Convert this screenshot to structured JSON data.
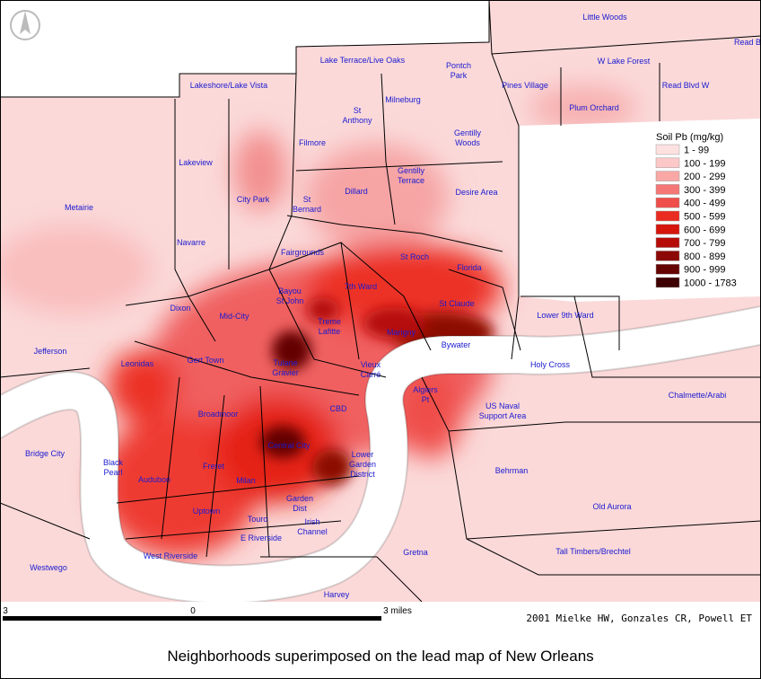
{
  "neighborhoods": [
    [
      "Little Woods"
    ],
    [
      "Read B"
    ],
    [
      "Lake Terrace/Live Oaks"
    ],
    [
      "Pontch",
      "Park"
    ],
    [
      "Pines Village"
    ],
    [
      "W Lake Forest"
    ],
    [
      "Read Blvd W"
    ],
    [
      "Lakeshore/Lake Vista"
    ],
    [
      "Milneburg"
    ],
    [
      "St",
      "Anthony"
    ],
    [
      "Plum Orchard"
    ],
    [
      "Filmore"
    ],
    [
      "Gentilly",
      "Woods"
    ],
    [
      "Lakeview"
    ],
    [
      "Gentilly",
      "Terrace"
    ],
    [
      "Dillard"
    ],
    [
      "Desire Area"
    ],
    [
      "City Park"
    ],
    [
      "St",
      "Bernard"
    ],
    [
      "Metairie"
    ],
    [
      "Navarre"
    ],
    [
      "Fairgrounds"
    ],
    [
      "St Roch"
    ],
    [
      "Florida"
    ],
    [
      "Bayou",
      "St John"
    ],
    [
      "7th Ward"
    ],
    [
      "St Claude"
    ],
    [
      "Dixon"
    ],
    [
      "Mid-City"
    ],
    [
      "Treme",
      "Lafitte"
    ],
    [
      "Lower 9th Ward"
    ],
    [
      "Marigny"
    ],
    [
      "Bywater"
    ],
    [
      "Jefferson"
    ],
    [
      "Leonidas"
    ],
    [
      "Gert Town"
    ],
    [
      "Tulane",
      "Gravier"
    ],
    [
      "Vieux",
      "Carré"
    ],
    [
      "Holy Cross"
    ],
    [
      "Algiers",
      "Pt"
    ],
    [
      "Chalmette/Arabi"
    ],
    [
      "Broadmoor"
    ],
    [
      "CBD"
    ],
    [
      "US Naval",
      "Support Area"
    ],
    [
      "Central City"
    ],
    [
      "Lower",
      "Garden",
      "District"
    ],
    [
      "Bridge City"
    ],
    [
      "Black",
      "Pearl"
    ],
    [
      "Audubon"
    ],
    [
      "Freret"
    ],
    [
      "Milan"
    ],
    [
      "Behrman"
    ],
    [
      "Garden",
      "Dist"
    ],
    [
      "Uptown"
    ],
    [
      "Irish",
      "Channel"
    ],
    [
      "Old Aurora"
    ],
    [
      "Touro"
    ],
    [
      "E Riverside"
    ],
    [
      "West Riverside"
    ],
    [
      "Westwego"
    ],
    [
      "Gretna"
    ],
    [
      "Tall Timbers/Brechtel"
    ],
    [
      "Harvey"
    ]
  ],
  "legend": {
    "title": "Soil Pb (mg/kg)",
    "items": [
      {
        "label": "1 - 99",
        "color": "#fde1e0"
      },
      {
        "label": "100 - 199",
        "color": "#fcc9c8"
      },
      {
        "label": "200 - 299",
        "color": "#f9a8a6"
      },
      {
        "label": "300 - 399",
        "color": "#f47775"
      },
      {
        "label": "400 - 499",
        "color": "#ef4e4a"
      },
      {
        "label": "500 - 599",
        "color": "#ea2b20"
      },
      {
        "label": "600 - 699",
        "color": "#d6150d"
      },
      {
        "label": "700 - 799",
        "color": "#b50c08"
      },
      {
        "label": "800 - 899",
        "color": "#8c0806"
      },
      {
        "label": "900 - 999",
        "color": "#640403"
      },
      {
        "label": "1000 - 1783",
        "color": "#3d0101"
      }
    ]
  },
  "scale": {
    "labels": [
      "3",
      "0",
      "3 miles"
    ]
  },
  "credit": "2001 Mielke HW, Gonzales CR, Powell ET",
  "caption": "Neighborhoods superimposed on the lead map of New Orleans"
}
